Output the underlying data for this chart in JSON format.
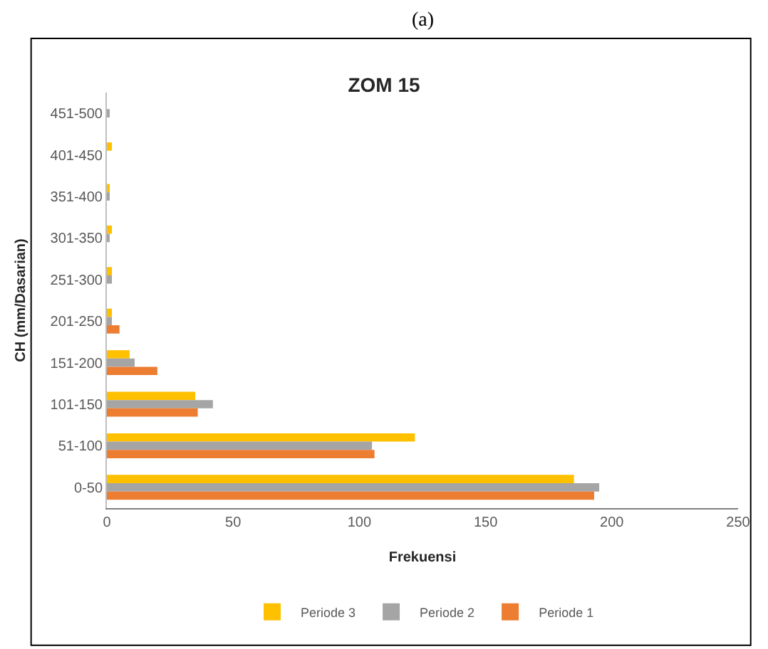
{
  "chart_data": {
    "type": "bar",
    "orientation": "horizontal",
    "title": "ZOM 15",
    "xlabel": "Frekuensi",
    "ylabel": "CH (mm/Dasarian)",
    "annotations": [
      "(a)"
    ],
    "categories": [
      "451-500",
      "401-450",
      "351-400",
      "301-350",
      "251-300",
      "201-250",
      "151-200",
      "101-150",
      "51-100",
      "0-50"
    ],
    "series": [
      {
        "name": "Periode 3",
        "color": "#ffc000",
        "values": [
          0,
          2,
          1,
          2,
          2,
          2,
          9,
          35,
          122,
          185
        ]
      },
      {
        "name": "Periode 2",
        "color": "#a5a5a5",
        "values": [
          1,
          0,
          1,
          1,
          2,
          2,
          11,
          42,
          105,
          195
        ]
      },
      {
        "name": "Periode 1",
        "color": "#ed7d31",
        "values": [
          0,
          0,
          0,
          0,
          0,
          5,
          20,
          36,
          106,
          193
        ]
      }
    ],
    "xlim": [
      0,
      250
    ],
    "xticks": [
      0,
      50,
      100,
      150,
      200,
      250
    ],
    "grid": false,
    "legend": "bottom"
  }
}
